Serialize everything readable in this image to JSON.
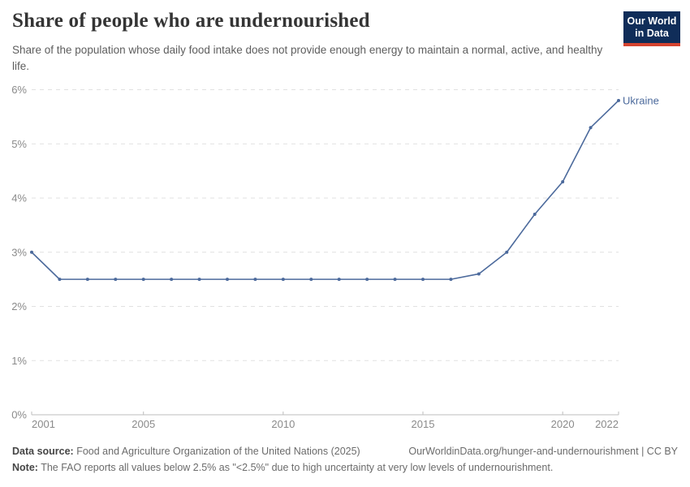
{
  "header": {
    "title": "Share of people who are undernourished",
    "subtitle": "Share of the population whose daily food intake does not provide enough energy to maintain a normal, active, and healthy life.",
    "logo": {
      "line1": "Our World",
      "line2": "in Data",
      "bg_color": "#102d59",
      "accent_color": "#d5432f"
    }
  },
  "chart_data": {
    "type": "line",
    "title": "Share of people who are undernourished",
    "x": [
      2001,
      2002,
      2003,
      2004,
      2005,
      2006,
      2007,
      2008,
      2009,
      2010,
      2011,
      2012,
      2013,
      2014,
      2015,
      2016,
      2017,
      2018,
      2019,
      2020,
      2021,
      2022
    ],
    "series": [
      {
        "name": "Ukraine",
        "color": "#4C6A9C",
        "values": [
          3.0,
          2.5,
          2.5,
          2.5,
          2.5,
          2.5,
          2.5,
          2.5,
          2.5,
          2.5,
          2.5,
          2.5,
          2.5,
          2.5,
          2.5,
          2.5,
          2.6,
          3.0,
          3.7,
          4.3,
          5.3,
          5.8
        ]
      }
    ],
    "xlim": [
      2001,
      2022
    ],
    "ylim": [
      0,
      6
    ],
    "x_ticks": [
      2001,
      2005,
      2010,
      2015,
      2020,
      2022
    ],
    "y_ticks": [
      {
        "value": 0,
        "label": "0%"
      },
      {
        "value": 1,
        "label": "1%"
      },
      {
        "value": 2,
        "label": "2%"
      },
      {
        "value": 3,
        "label": "3%"
      },
      {
        "value": 4,
        "label": "4%"
      },
      {
        "value": 5,
        "label": "5%"
      },
      {
        "value": 6,
        "label": "6%"
      }
    ],
    "grid": "horizontal-dashed",
    "grid_color": "#e1e1e1",
    "axis_color": "#bdbdbd",
    "legend": "end-of-line-label"
  },
  "footer": {
    "source_label": "Data source:",
    "source_text": " Food and Agriculture Organization of the United Nations (2025)",
    "link_text": "OurWorldinData.org/hunger-and-undernourishment | CC BY",
    "note_label": "Note:",
    "note_text": " The FAO reports all values below 2.5% as \"<2.5%\" due to high uncertainty at very low levels of undernourishment."
  }
}
